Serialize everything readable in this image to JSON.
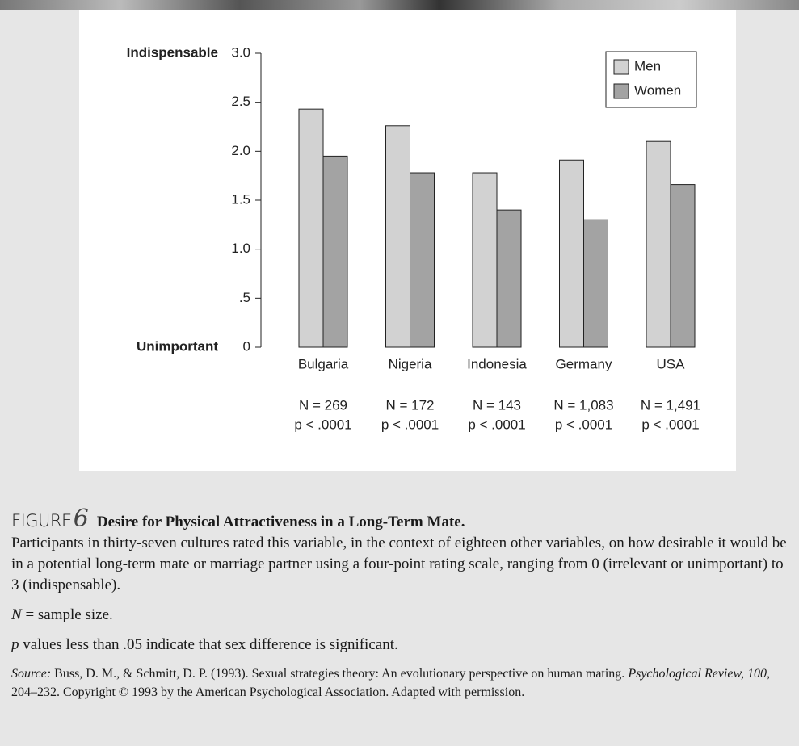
{
  "chart_data": {
    "type": "bar",
    "y_label_top": "Indispensable",
    "y_label_bottom": "Unimportant",
    "categories": [
      "Bulgaria",
      "Nigeria",
      "Indonesia",
      "Germany",
      "USA"
    ],
    "n_labels": [
      "N = 269",
      "N = 172",
      "N = 143",
      "N = 1,083",
      "N = 1,491"
    ],
    "p_labels": [
      "p < .0001",
      "p < .0001",
      "p < .0001",
      "p < .0001",
      "p < .0001"
    ],
    "series": [
      {
        "name": "Men",
        "color": "#d2d2d2",
        "values": [
          2.43,
          2.26,
          1.78,
          1.91,
          2.1
        ]
      },
      {
        "name": "Women",
        "color": "#a3a3a3",
        "values": [
          1.95,
          1.78,
          1.4,
          1.3,
          1.66
        ]
      }
    ],
    "ylim": [
      0,
      3
    ],
    "yticks": [
      {
        "value": 3,
        "label": "3.0"
      },
      2.5,
      {
        "value": 2,
        "label": "2.0"
      },
      1.5,
      {
        "value": 1,
        "label": "1.0"
      },
      {
        "value": 0.5,
        "label": ".5"
      },
      0
    ],
    "legend": "top-right"
  },
  "caption": {
    "figure_word": "FIGURE",
    "figure_number": "6",
    "title": "Desire for Physical Attractiveness in a Long-Term Mate.",
    "description": "Participants in thirty-seven cultures rated this variable, in the context of eighteen other variables, on how desirable it would be in a potential long-term mate or marriage partner using a four-point rating scale, ranging from 0 (irrelevant or unimportant) to 3 (indispensable).",
    "note_n": {
      "symbol": "N",
      "text": "= sample size."
    },
    "note_p": {
      "symbol": "p",
      "text": "values less than .05 indicate that sex difference is significant."
    },
    "source": {
      "label": "Source:",
      "text1": "Buss, D. M., & Schmitt, D. P. (1993). Sexual strategies theory: An evolutionary perspective on human mating.",
      "journal": "Psychological Review, 100,",
      "text2": "204–232. Copyright © 1993 by the American Psychological Association. Adapted with permission."
    }
  }
}
